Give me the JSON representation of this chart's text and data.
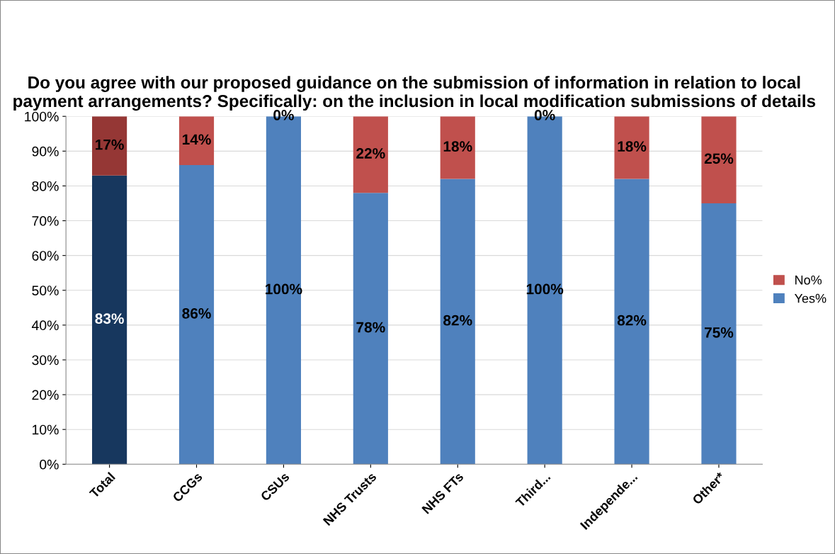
{
  "chart_data": {
    "type": "bar",
    "title": "Do you agree with our proposed guidance on the submission of information in relation to local payment arrangements? Specifically: on the inclusion in local modification submissions of details",
    "categories": [
      "Total",
      "CCGs",
      "CSUs",
      "NHS Trusts",
      "NHS FTs",
      "Third...",
      "Independe...",
      "Other*"
    ],
    "stacked": true,
    "series": [
      {
        "name": "Yes%",
        "color": "#4f81bd",
        "colors": [
          "#17375e",
          "#4f81bd",
          "#4f81bd",
          "#4f81bd",
          "#4f81bd",
          "#4f81bd",
          "#4f81bd",
          "#4f81bd"
        ],
        "values": [
          83,
          86,
          100,
          78,
          82,
          100,
          82,
          75
        ],
        "value_labels": [
          "83%",
          "86%",
          "100%",
          "78%",
          "82%",
          "100%",
          "82%",
          "75%"
        ]
      },
      {
        "name": "No%",
        "color": "#c0504d",
        "colors": [
          "#953735",
          "#c0504d",
          "#c0504d",
          "#c0504d",
          "#c0504d",
          "#c0504d",
          "#c0504d",
          "#c0504d"
        ],
        "values": [
          17,
          14,
          0,
          22,
          18,
          0,
          18,
          25
        ],
        "value_labels": [
          "17%",
          "14%",
          "0%",
          "22%",
          "18%",
          "0%",
          "18%",
          "25%"
        ]
      }
    ],
    "ylim": [
      0,
      100
    ],
    "yticks": [
      {
        "value": 0,
        "label": "0%"
      },
      {
        "value": 10,
        "label": "10%"
      },
      {
        "value": 20,
        "label": "20%"
      },
      {
        "value": 30,
        "label": "30%"
      },
      {
        "value": 40,
        "label": "40%"
      },
      {
        "value": 50,
        "label": "50%"
      },
      {
        "value": 60,
        "label": "60%"
      },
      {
        "value": 70,
        "label": "70%"
      },
      {
        "value": 80,
        "label": "80%"
      },
      {
        "value": 90,
        "label": "90%"
      },
      {
        "value": 100,
        "label": "100%"
      }
    ],
    "grid": "y",
    "legend": "right"
  }
}
